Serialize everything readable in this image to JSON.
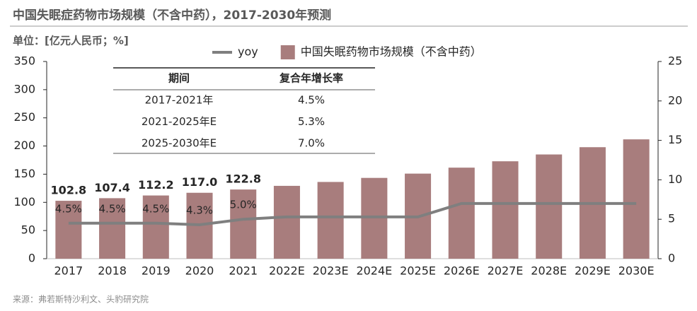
{
  "chart_data": {
    "type": "bar",
    "title": "中国失眠症药物市场规模（不含中药），2017-2030年预测",
    "subtitle": "单位：[亿元人民币；%]",
    "source": "来源：弗若斯特沙利文、头豹研究院",
    "categories": [
      "2017",
      "2018",
      "2019",
      "2020",
      "2021",
      "2022E",
      "2023E",
      "2024E",
      "2025E",
      "2026E",
      "2027E",
      "2028E",
      "2029E",
      "2030E"
    ],
    "series": [
      {
        "name": "中国失眠药物市场规模（不含中药）",
        "type": "bar",
        "color": "#a87d7d",
        "values": [
          102.8,
          107.4,
          112.2,
          117.0,
          122.8,
          129.3,
          136.2,
          143.4,
          151.0,
          161.6,
          172.9,
          185.0,
          197.9,
          211.8
        ],
        "value_labels": [
          "102.8",
          "107.4",
          "112.2",
          "117.0",
          "122.8",
          null,
          null,
          null,
          null,
          null,
          null,
          null,
          null,
          null
        ]
      },
      {
        "name": "yoy",
        "type": "line",
        "axis": "y2",
        "color": "#7f7f7f",
        "values": [
          4.5,
          4.5,
          4.5,
          4.3,
          5.0,
          5.3,
          5.3,
          5.3,
          5.3,
          7.0,
          7.0,
          7.0,
          7.0,
          7.0
        ],
        "value_labels": [
          "4.5%",
          "4.5%",
          "4.5%",
          "4.3%",
          "5.0%",
          null,
          null,
          null,
          null,
          null,
          null,
          null,
          null,
          null
        ]
      }
    ],
    "ylim": [
      0,
      350
    ],
    "yticks": [
      0,
      50,
      100,
      150,
      200,
      250,
      300,
      350
    ],
    "y2lim": [
      0,
      25
    ],
    "y2ticks": [
      0,
      5,
      10,
      15,
      20,
      25
    ],
    "legend": "top"
  },
  "table": {
    "header": [
      "期间",
      "复合年增长率"
    ],
    "rows": [
      [
        "2017-2021年",
        "4.5%"
      ],
      [
        "2021-2025年E",
        "5.3%"
      ],
      [
        "2025-2030年E",
        "7.0%"
      ]
    ]
  }
}
